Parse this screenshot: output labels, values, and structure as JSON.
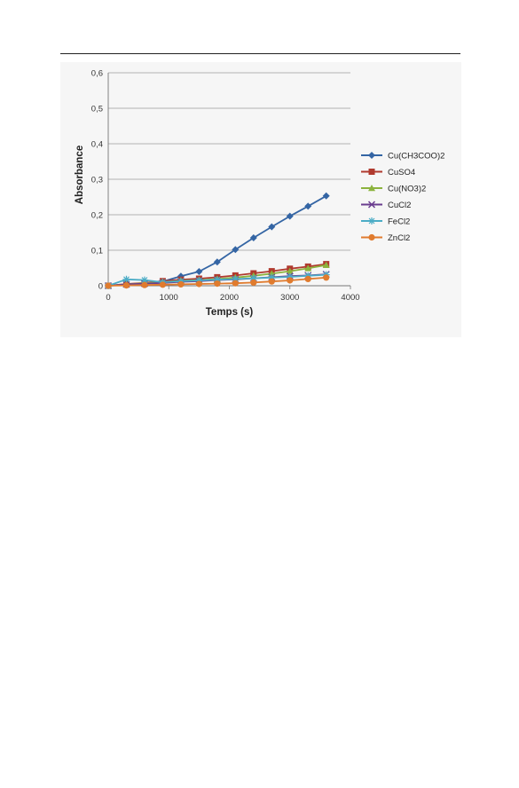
{
  "chart_data": {
    "type": "line",
    "xlabel": "Temps (s)",
    "ylabel": "Absorbance",
    "xlim": [
      0,
      4000
    ],
    "ylim": [
      0,
      0.6
    ],
    "x_ticks": [
      "0",
      "1000",
      "2000",
      "3000",
      "4000"
    ],
    "y_ticks": [
      "0",
      "0,1",
      "0,2",
      "0,3",
      "0,4",
      "0,5",
      "0,6"
    ],
    "grid": "horizontal",
    "legend_position": "right",
    "series": [
      {
        "name": "Cu(CH3COO)2",
        "color": "#3465a4",
        "marker": "diamond",
        "x": [
          0,
          300,
          600,
          900,
          1200,
          1500,
          1800,
          2100,
          2400,
          2700,
          3000,
          3300,
          3600
        ],
        "y": [
          0,
          0.003,
          0.006,
          0.012,
          0.027,
          0.04,
          0.067,
          0.102,
          0.135,
          0.166,
          0.196,
          0.224,
          0.253
        ]
      },
      {
        "name": "CuSO4",
        "color": "#b03a2e",
        "marker": "square",
        "x": [
          0,
          300,
          600,
          900,
          1200,
          1500,
          1800,
          2100,
          2400,
          2700,
          3000,
          3300,
          3600
        ],
        "y": [
          0,
          0.005,
          0.008,
          0.013,
          0.017,
          0.02,
          0.024,
          0.029,
          0.035,
          0.041,
          0.048,
          0.054,
          0.061
        ]
      },
      {
        "name": "Cu(NO3)2",
        "color": "#8cb33e",
        "marker": "triangle",
        "x": [
          0,
          300,
          600,
          900,
          1200,
          1500,
          1800,
          2100,
          2400,
          2700,
          3000,
          3300,
          3600
        ],
        "y": [
          0,
          0.004,
          0.007,
          0.01,
          0.014,
          0.016,
          0.019,
          0.023,
          0.028,
          0.034,
          0.041,
          0.049,
          0.058
        ]
      },
      {
        "name": "CuCl2",
        "color": "#6a3d8f",
        "marker": "x",
        "x": [
          0,
          300,
          600,
          900,
          1200,
          1500,
          1800,
          2100,
          2400,
          2700,
          3000,
          3300,
          3600
        ],
        "y": [
          0,
          0.004,
          0.006,
          0.008,
          0.011,
          0.013,
          0.016,
          0.018,
          0.021,
          0.024,
          0.027,
          0.029,
          0.032
        ]
      },
      {
        "name": "FeCl2",
        "color": "#4bacc6",
        "marker": "star",
        "x": [
          0,
          300,
          600,
          900,
          1200,
          1500,
          1800,
          2100,
          2400,
          2700,
          3000,
          3300,
          3600
        ],
        "y": [
          0,
          0.018,
          0.016,
          0.01,
          0.013,
          0.015,
          0.017,
          0.019,
          0.021,
          0.023,
          0.025,
          0.028,
          0.031
        ]
      },
      {
        "name": "ZnCl2",
        "color": "#e07b2e",
        "marker": "circle",
        "x": [
          0,
          300,
          600,
          900,
          1200,
          1500,
          1800,
          2100,
          2400,
          2700,
          3000,
          3300,
          3600
        ],
        "y": [
          0,
          0.001,
          0.002,
          0.003,
          0.004,
          0.005,
          0.006,
          0.007,
          0.009,
          0.012,
          0.015,
          0.019,
          0.023
        ]
      }
    ]
  }
}
